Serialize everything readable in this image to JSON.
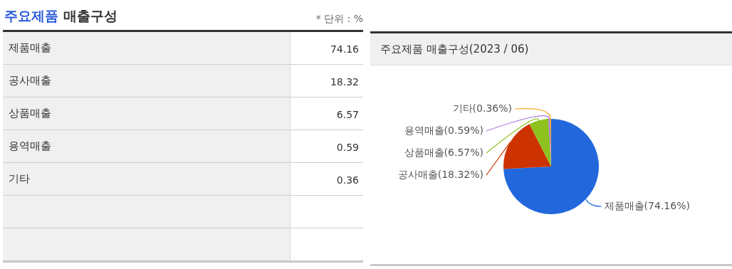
{
  "chart_data": [
    {
      "type": "other",
      "title": "주요제품 매출구성",
      "annotations": [
        "* 단위 : %"
      ],
      "categories": [
        "제품매출",
        "공사매출",
        "상품매출",
        "용역매출",
        "기타"
      ],
      "values": [
        74.16,
        18.32,
        6.57,
        0.59,
        0.36
      ],
      "data_labels": true
    },
    {
      "type": "pie",
      "title": "주요제품 매출구성(2023 / 06)",
      "categories": [
        "제품매출",
        "공사매출",
        "상품매출",
        "용역매출",
        "기타"
      ],
      "values": [
        74.16,
        18.32,
        6.57,
        0.59,
        0.36
      ],
      "colors": [
        "#2268dc",
        "#cc3300",
        "#8dc21f",
        "#a877e0",
        "#f5a623"
      ],
      "value_labels": [
        "(74.16%)",
        "(18.32%)",
        "(6.57%)",
        "(0.59%)",
        "(0.36%)"
      ],
      "legend": false
    }
  ]
}
